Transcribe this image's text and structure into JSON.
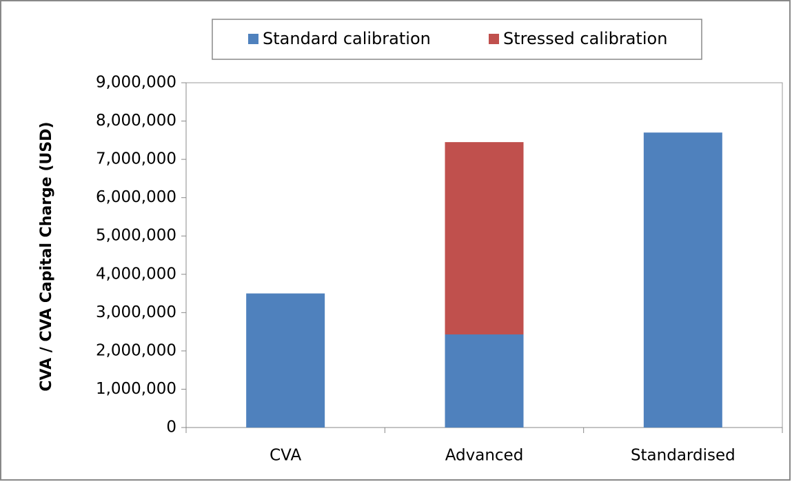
{
  "chart_data": {
    "type": "bar",
    "stacked": true,
    "y_label": "CVA / CVA Capital Charge (USD)",
    "categories": [
      "CVA",
      "Advanced",
      "Standardised"
    ],
    "series": [
      {
        "name": "Standard calibration",
        "color": "#4f81bd",
        "values": [
          3500000,
          2430000,
          7700000
        ]
      },
      {
        "name": "Stressed calibration",
        "color": "#c0504d",
        "values": [
          null,
          5020000,
          null
        ]
      }
    ],
    "ylim": [
      0,
      9000000
    ],
    "yticks": [
      0,
      {
        "value": 1000000,
        "label": "1,000,000"
      },
      {
        "value": 2000000,
        "label": "2,000,000"
      },
      {
        "value": 3000000,
        "label": "3,000,000"
      },
      {
        "value": 4000000,
        "label": "4,000,000"
      },
      {
        "value": 5000000,
        "label": "5,000,000"
      },
      {
        "value": 6000000,
        "label": "6,000,000"
      },
      {
        "value": 7000000,
        "label": "7,000,000"
      },
      {
        "value": 8000000,
        "label": "8,000,000"
      },
      {
        "value": 9000000,
        "label": "9,000,000"
      }
    ],
    "legend": "top",
    "grid": false
  }
}
